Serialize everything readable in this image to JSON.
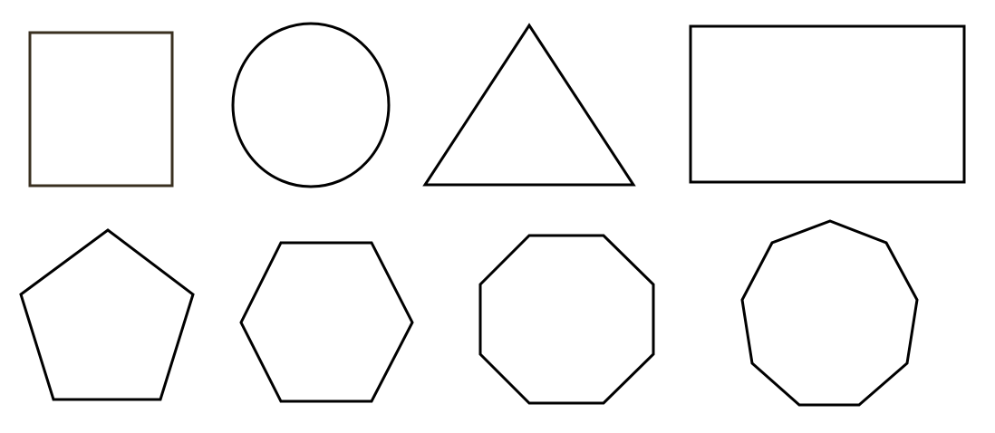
{
  "canvas": {
    "background": "#ffffff"
  },
  "style": {
    "stroke_color": "#000000",
    "square_stroke_color": "#3a3020"
  },
  "shapes": [
    {
      "name": "square",
      "sides": 4
    },
    {
      "name": "circle",
      "sides": 0
    },
    {
      "name": "triangle",
      "sides": 3
    },
    {
      "name": "rectangle",
      "sides": 4
    },
    {
      "name": "pentagon",
      "sides": 5
    },
    {
      "name": "hexagon",
      "sides": 6
    },
    {
      "name": "octagon",
      "sides": 8
    },
    {
      "name": "nonagon",
      "sides": 9
    }
  ]
}
